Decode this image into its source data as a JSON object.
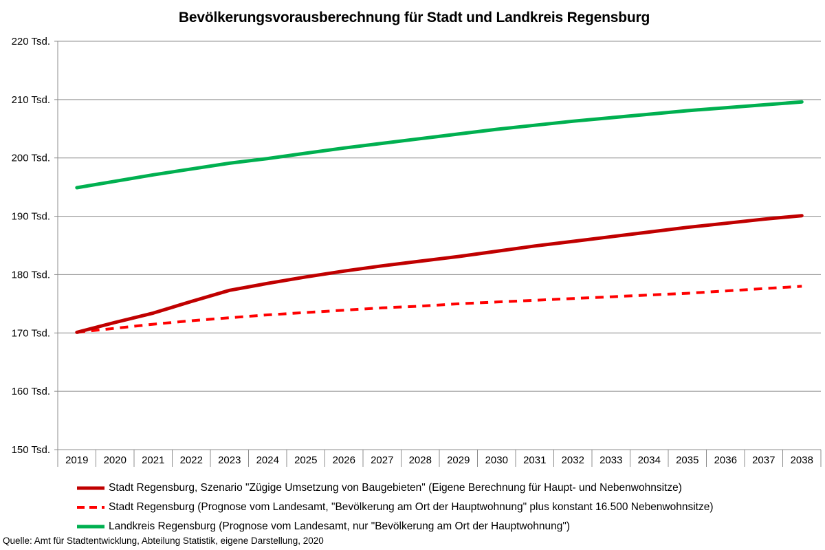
{
  "chart_data": {
    "type": "line",
    "title": "Bevölkerungsvorausberechnung für Stadt und Landkreis Regensburg",
    "x": [
      "2019",
      "2020",
      "2021",
      "2022",
      "2023",
      "2024",
      "2025",
      "2026",
      "2027",
      "2028",
      "2029",
      "2030",
      "2031",
      "2032",
      "2033",
      "2034",
      "2035",
      "2036",
      "2037",
      "2038"
    ],
    "ylim": [
      150,
      220
    ],
    "y_ticks": [
      150,
      160,
      170,
      180,
      190,
      200,
      210,
      220
    ],
    "y_tick_labels": [
      "150 Tsd.",
      "160 Tsd.",
      "170 Tsd.",
      "180 Tsd.",
      "190 Tsd.",
      "200 Tsd.",
      "210 Tsd.",
      "220 Tsd."
    ],
    "unit": "Tsd.",
    "grid": true,
    "legend_position": "bottom",
    "series": [
      {
        "name": "Stadt Regensburg, Szenario \"Zügige Umsetzung von Baugebieten\" (Eigene Berechnung für Haupt- und Nebenwohnsitze)",
        "color": "#C00000",
        "style": "solid",
        "values": [
          170.1,
          171.8,
          173.4,
          175.4,
          177.3,
          178.5,
          179.6,
          180.6,
          181.5,
          182.3,
          183.1,
          184.0,
          184.9,
          185.7,
          186.5,
          187.3,
          188.1,
          188.8,
          189.5,
          190.1
        ]
      },
      {
        "name": "Stadt Regensburg (Prognose vom Landesamt, \"Bevölkerung am Ort der Hauptwohnung\" plus konstant 16.500 Nebenwohnsitze)",
        "color": "#FF0000",
        "style": "dashed",
        "values": [
          170.1,
          170.8,
          171.5,
          172.1,
          172.6,
          173.1,
          173.5,
          173.9,
          174.3,
          174.6,
          175.0,
          175.3,
          175.6,
          175.9,
          176.2,
          176.5,
          176.8,
          177.2,
          177.6,
          178.0
        ]
      },
      {
        "name": "Landkreis Regensburg (Prognose vom Landesamt, nur \"Bevölkerung am Ort der Hauptwohnung\")",
        "color": "#00B050",
        "style": "solid",
        "values": [
          194.9,
          196.0,
          197.1,
          198.1,
          199.1,
          199.9,
          200.8,
          201.7,
          202.5,
          203.3,
          204.1,
          204.9,
          205.6,
          206.3,
          206.9,
          207.5,
          208.1,
          208.6,
          209.1,
          209.6
        ]
      }
    ]
  },
  "source": "Quelle: Amt für Stadtentwicklung, Abteilung Statistik, eigene Darstellung, 2020"
}
